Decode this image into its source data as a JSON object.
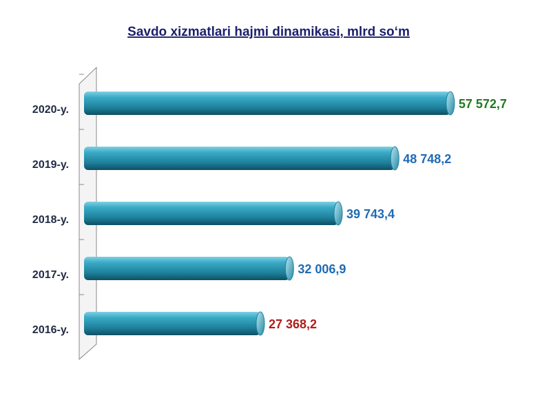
{
  "chart_data": {
    "type": "barh",
    "title": "Savdo xizmatlari hajmi dinamikasi, mlrd so‘m",
    "categories": [
      "2020-y.",
      "2019-y.",
      "2018-y.",
      "2017-y.",
      "2016-y."
    ],
    "values": [
      57572.7,
      48748.2,
      39743.4,
      32006.9,
      27368.2
    ],
    "value_labels": [
      "57 572,7",
      "48 748,2",
      "39 743,4",
      "32 006,9",
      "27 368,2"
    ],
    "value_label_colors": [
      "#1e7a1e",
      "#1f6bb5",
      "#1f6bb5",
      "#1f6bb5",
      "#b01c1c"
    ],
    "color": "#2a9ab5",
    "xlim": [
      0,
      60000
    ]
  }
}
